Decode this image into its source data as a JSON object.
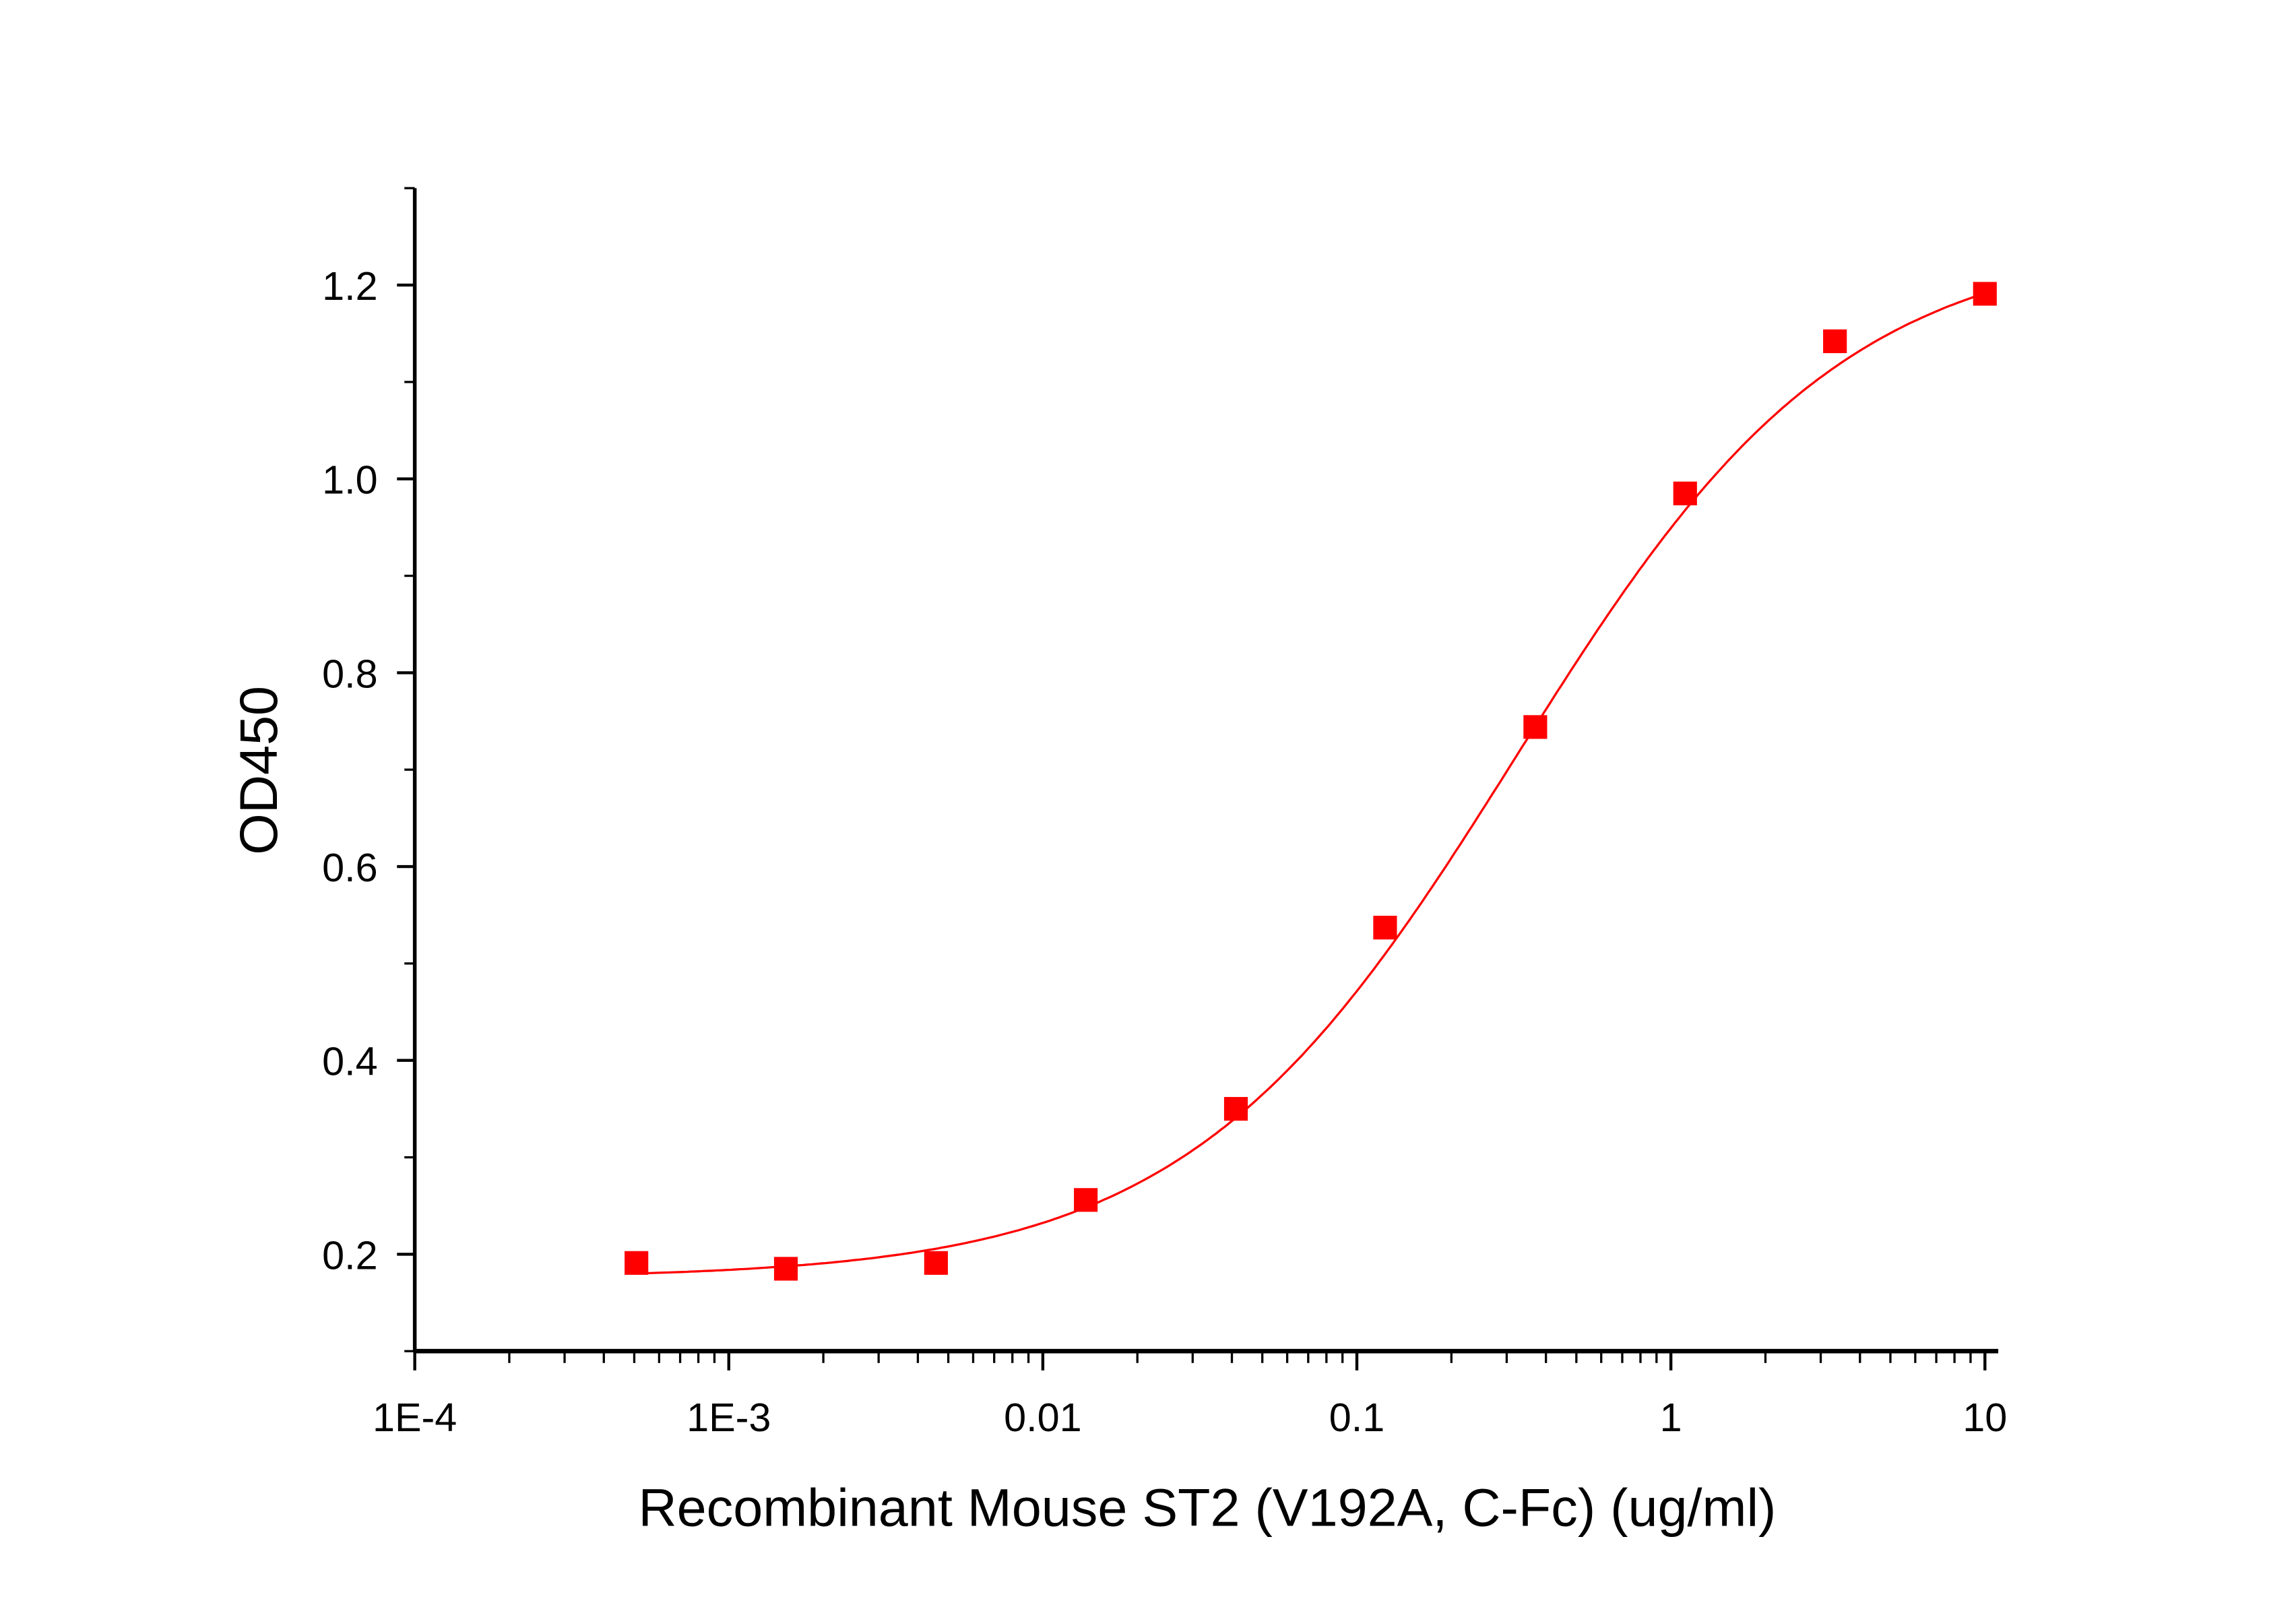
{
  "chart_data": {
    "type": "scatter",
    "title": "",
    "xlabel": "Recombinant Mouse ST2 (V192A, C-Fc) (ug/ml)",
    "ylabel": "OD450",
    "xscale": "log",
    "xlim": [
      0.0001,
      10
    ],
    "ylim": [
      0.1,
      1.3
    ],
    "x_ticks": [
      "1E-4",
      "1E-3",
      "0.01",
      "0.1",
      "1",
      "10"
    ],
    "y_ticks": [
      "0.2",
      "0.4",
      "0.6",
      "0.8",
      "1.0",
      "1.2"
    ],
    "grid": false,
    "series": [
      {
        "name": "OD450",
        "color": "#ff0000",
        "marker": "square",
        "x": [
          0.000508,
          0.00152,
          0.00457,
          0.0137,
          0.0412,
          0.123,
          0.37,
          1.11,
          3.33,
          10
        ],
        "y": [
          0.191,
          0.185,
          0.191,
          0.256,
          0.35,
          0.537,
          0.744,
          0.985,
          1.142,
          1.191
        ]
      }
    ],
    "fit": {
      "type": "4PL",
      "bottom": 0.175,
      "top": 1.25,
      "ec50": 0.32,
      "hill": 0.83,
      "color": "#ff0000"
    }
  }
}
